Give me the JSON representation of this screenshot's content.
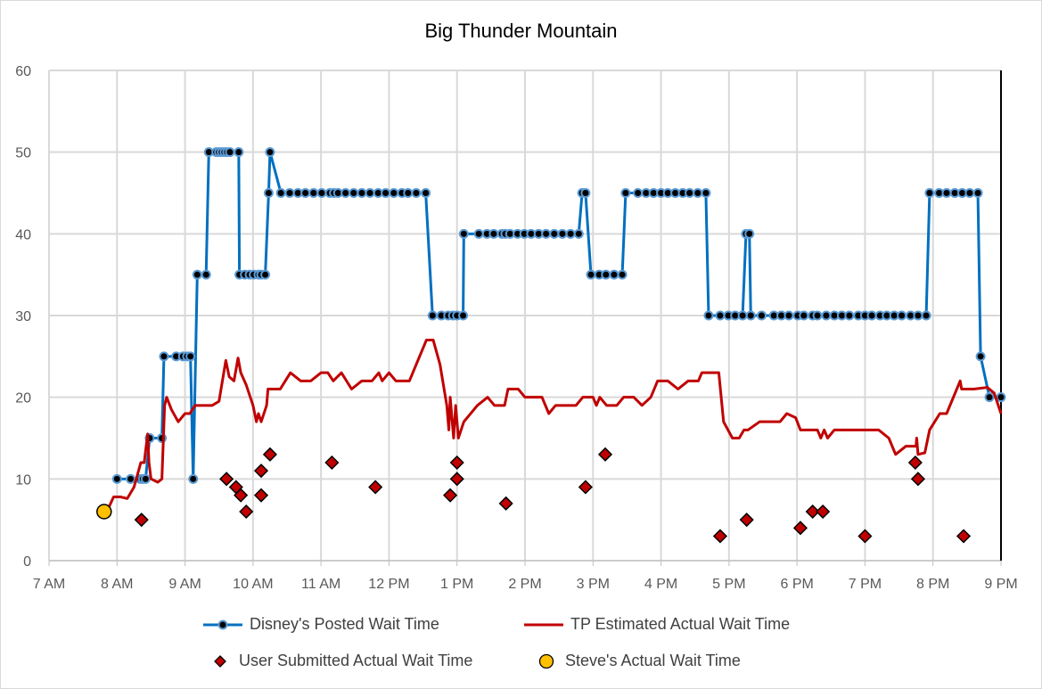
{
  "chart_data": {
    "type": "line",
    "title": "Big Thunder Mountain",
    "xlabel": "",
    "ylabel": "",
    "xlim": [
      7,
      21
    ],
    "ylim": [
      0,
      60
    ],
    "grid": true,
    "legend_placement": "bottom",
    "x_ticks": [
      7,
      8,
      9,
      10,
      11,
      12,
      13,
      14,
      15,
      16,
      17,
      18,
      19,
      20,
      21
    ],
    "x_tick_labels": [
      "7 AM",
      "8 AM",
      "9 AM",
      "10 AM",
      "11 AM",
      "12 PM",
      "1 PM",
      "2 PM",
      "3 PM",
      "4 PM",
      "5 PM",
      "6 PM",
      "7 PM",
      "8 PM",
      "9 PM"
    ],
    "y_ticks": [
      0,
      10,
      20,
      30,
      40,
      50,
      60
    ],
    "y_tick_labels": [
      "0",
      "10",
      "20",
      "30",
      "40",
      "50",
      "60"
    ],
    "series": [
      {
        "name": "Disney's Posted Wait Time",
        "kind": "line-markers",
        "color": "#0070C0",
        "points": [
          [
            8.0,
            10
          ],
          [
            8.2,
            10
          ],
          [
            8.34,
            10
          ],
          [
            8.38,
            10
          ],
          [
            8.42,
            10
          ],
          [
            8.48,
            15
          ],
          [
            8.66,
            15
          ],
          [
            8.69,
            25
          ],
          [
            8.87,
            25
          ],
          [
            8.97,
            25
          ],
          [
            9.03,
            25
          ],
          [
            9.08,
            25
          ],
          [
            9.12,
            10
          ],
          [
            9.18,
            35
          ],
          [
            9.31,
            35
          ],
          [
            9.35,
            50
          ],
          [
            9.46,
            50
          ],
          [
            9.5,
            50
          ],
          [
            9.54,
            50
          ],
          [
            9.58,
            50
          ],
          [
            9.62,
            50
          ],
          [
            9.66,
            50
          ],
          [
            9.79,
            50
          ],
          [
            9.8,
            35
          ],
          [
            9.88,
            35
          ],
          [
            9.95,
            35
          ],
          [
            10.01,
            35
          ],
          [
            10.08,
            35
          ],
          [
            10.12,
            35
          ],
          [
            10.18,
            35
          ],
          [
            10.23,
            45
          ],
          [
            10.25,
            50
          ],
          [
            10.41,
            45
          ],
          [
            10.54,
            45
          ],
          [
            10.66,
            45
          ],
          [
            10.77,
            45
          ],
          [
            10.89,
            45
          ],
          [
            11.01,
            45
          ],
          [
            11.13,
            45
          ],
          [
            11.19,
            45
          ],
          [
            11.25,
            45
          ],
          [
            11.36,
            45
          ],
          [
            11.48,
            45
          ],
          [
            11.6,
            45
          ],
          [
            11.72,
            45
          ],
          [
            11.84,
            45
          ],
          [
            11.95,
            45
          ],
          [
            12.07,
            45
          ],
          [
            12.19,
            45
          ],
          [
            12.28,
            45
          ],
          [
            12.4,
            45
          ],
          [
            12.54,
            45
          ],
          [
            12.64,
            30
          ],
          [
            12.77,
            30
          ],
          [
            12.87,
            30
          ],
          [
            12.94,
            30
          ],
          [
            13.0,
            30
          ],
          [
            13.09,
            30
          ],
          [
            13.1,
            40
          ],
          [
            13.32,
            40
          ],
          [
            13.44,
            40
          ],
          [
            13.54,
            40
          ],
          [
            13.66,
            40
          ],
          [
            13.71,
            40
          ],
          [
            13.78,
            40
          ],
          [
            13.89,
            40
          ],
          [
            13.99,
            40
          ],
          [
            14.09,
            40
          ],
          [
            14.2,
            40
          ],
          [
            14.31,
            40
          ],
          [
            14.43,
            40
          ],
          [
            14.55,
            40
          ],
          [
            14.67,
            40
          ],
          [
            14.79,
            40
          ],
          [
            14.84,
            45
          ],
          [
            14.89,
            45
          ],
          [
            14.97,
            35
          ],
          [
            15.09,
            35
          ],
          [
            15.19,
            35
          ],
          [
            15.31,
            35
          ],
          [
            15.43,
            35
          ],
          [
            15.48,
            45
          ],
          [
            15.66,
            45
          ],
          [
            15.78,
            45
          ],
          [
            15.89,
            45
          ],
          [
            16.0,
            45
          ],
          [
            16.1,
            45
          ],
          [
            16.21,
            45
          ],
          [
            16.32,
            45
          ],
          [
            16.42,
            45
          ],
          [
            16.54,
            45
          ],
          [
            16.66,
            45
          ],
          [
            16.7,
            30
          ],
          [
            16.87,
            30
          ],
          [
            16.99,
            30
          ],
          [
            17.09,
            30
          ],
          [
            17.2,
            30
          ],
          [
            17.25,
            40
          ],
          [
            17.3,
            40
          ],
          [
            17.32,
            30
          ],
          [
            17.48,
            30
          ],
          [
            17.66,
            30
          ],
          [
            17.77,
            30
          ],
          [
            17.88,
            30
          ],
          [
            18.01,
            30
          ],
          [
            18.1,
            30
          ],
          [
            18.23,
            30
          ],
          [
            18.3,
            30
          ],
          [
            18.43,
            30
          ],
          [
            18.55,
            30
          ],
          [
            18.66,
            30
          ],
          [
            18.77,
            30
          ],
          [
            18.9,
            30
          ],
          [
            19.0,
            30
          ],
          [
            19.1,
            30
          ],
          [
            19.22,
            30
          ],
          [
            19.32,
            30
          ],
          [
            19.43,
            30
          ],
          [
            19.54,
            30
          ],
          [
            19.67,
            30
          ],
          [
            19.78,
            30
          ],
          [
            19.9,
            30
          ],
          [
            19.95,
            45
          ],
          [
            20.09,
            45
          ],
          [
            20.2,
            45
          ],
          [
            20.32,
            45
          ],
          [
            20.43,
            45
          ],
          [
            20.54,
            45
          ],
          [
            20.66,
            45
          ],
          [
            20.7,
            25
          ],
          [
            20.83,
            20
          ],
          [
            21.0,
            20
          ]
        ]
      },
      {
        "name": "TP Estimated Actual Wait Time",
        "kind": "line",
        "color": "#C00000",
        "points": [
          [
            7.85,
            6
          ],
          [
            7.95,
            7.8
          ],
          [
            8.05,
            7.8
          ],
          [
            8.15,
            7.6
          ],
          [
            8.25,
            9
          ],
          [
            8.35,
            12
          ],
          [
            8.4,
            12
          ],
          [
            8.45,
            15.5
          ],
          [
            8.47,
            12
          ],
          [
            8.5,
            10
          ],
          [
            8.6,
            9.6
          ],
          [
            8.66,
            10
          ],
          [
            8.7,
            19
          ],
          [
            8.73,
            20
          ],
          [
            8.8,
            18.5
          ],
          [
            8.9,
            17
          ],
          [
            9.0,
            18
          ],
          [
            9.07,
            18
          ],
          [
            9.15,
            19
          ],
          [
            9.4,
            19
          ],
          [
            9.5,
            19.5
          ],
          [
            9.6,
            24.5
          ],
          [
            9.65,
            22.5
          ],
          [
            9.72,
            22
          ],
          [
            9.78,
            24.8
          ],
          [
            9.82,
            23
          ],
          [
            9.9,
            21.5
          ],
          [
            10.0,
            19
          ],
          [
            10.05,
            17
          ],
          [
            10.08,
            18
          ],
          [
            10.12,
            17
          ],
          [
            10.2,
            19
          ],
          [
            10.22,
            21
          ],
          [
            10.4,
            21
          ],
          [
            10.55,
            23
          ],
          [
            10.7,
            22
          ],
          [
            10.85,
            22
          ],
          [
            11.0,
            23
          ],
          [
            11.1,
            23
          ],
          [
            11.18,
            22
          ],
          [
            11.3,
            23
          ],
          [
            11.45,
            21
          ],
          [
            11.6,
            22
          ],
          [
            11.75,
            22
          ],
          [
            11.85,
            23
          ],
          [
            11.9,
            22
          ],
          [
            12.0,
            23
          ],
          [
            12.1,
            22
          ],
          [
            12.3,
            22
          ],
          [
            12.45,
            25
          ],
          [
            12.55,
            27
          ],
          [
            12.65,
            27
          ],
          [
            12.75,
            24
          ],
          [
            12.85,
            19
          ],
          [
            12.88,
            16
          ],
          [
            12.9,
            20
          ],
          [
            12.95,
            15
          ],
          [
            12.98,
            19
          ],
          [
            13.02,
            15
          ],
          [
            13.1,
            17
          ],
          [
            13.3,
            19
          ],
          [
            13.45,
            20
          ],
          [
            13.55,
            19
          ],
          [
            13.7,
            19
          ],
          [
            13.75,
            21
          ],
          [
            13.9,
            21
          ],
          [
            14.0,
            20
          ],
          [
            14.25,
            20
          ],
          [
            14.35,
            18
          ],
          [
            14.45,
            19
          ],
          [
            14.75,
            19
          ],
          [
            14.85,
            20
          ],
          [
            15.0,
            20
          ],
          [
            15.05,
            19
          ],
          [
            15.1,
            20
          ],
          [
            15.2,
            19
          ],
          [
            15.35,
            19
          ],
          [
            15.45,
            20
          ],
          [
            15.6,
            20
          ],
          [
            15.72,
            19
          ],
          [
            15.85,
            20
          ],
          [
            15.95,
            22
          ],
          [
            16.1,
            22
          ],
          [
            16.25,
            21
          ],
          [
            16.4,
            22
          ],
          [
            16.55,
            22
          ],
          [
            16.6,
            23
          ],
          [
            16.85,
            23
          ],
          [
            16.92,
            17
          ],
          [
            17.05,
            15
          ],
          [
            17.15,
            15
          ],
          [
            17.22,
            16
          ],
          [
            17.28,
            16
          ],
          [
            17.45,
            17
          ],
          [
            17.65,
            17
          ],
          [
            17.75,
            17
          ],
          [
            17.85,
            18
          ],
          [
            17.98,
            17.5
          ],
          [
            18.05,
            16
          ],
          [
            18.3,
            16
          ],
          [
            18.35,
            15
          ],
          [
            18.4,
            16
          ],
          [
            18.45,
            15
          ],
          [
            18.55,
            16
          ],
          [
            19.2,
            16
          ],
          [
            19.35,
            15
          ],
          [
            19.45,
            13
          ],
          [
            19.6,
            14
          ],
          [
            19.75,
            14
          ],
          [
            19.76,
            15
          ],
          [
            19.78,
            13
          ],
          [
            19.88,
            13.2
          ],
          [
            19.95,
            16
          ],
          [
            20.1,
            18
          ],
          [
            20.2,
            18
          ],
          [
            20.4,
            22
          ],
          [
            20.42,
            21
          ],
          [
            20.6,
            21
          ],
          [
            20.8,
            21.2
          ],
          [
            20.9,
            20.5
          ],
          [
            21.0,
            18
          ]
        ]
      },
      {
        "name": "User Submitted Actual Wait Time",
        "kind": "scatter-diamond",
        "color": "#C00000",
        "points": [
          [
            8.36,
            5
          ],
          [
            9.61,
            10
          ],
          [
            9.75,
            9
          ],
          [
            9.82,
            8
          ],
          [
            9.9,
            6
          ],
          [
            10.12,
            11
          ],
          [
            10.12,
            8
          ],
          [
            10.25,
            13
          ],
          [
            11.16,
            12
          ],
          [
            11.8,
            9
          ],
          [
            12.9,
            8
          ],
          [
            13.0,
            10
          ],
          [
            13.0,
            12
          ],
          [
            13.72,
            7
          ],
          [
            14.89,
            9
          ],
          [
            15.18,
            13
          ],
          [
            16.87,
            3
          ],
          [
            17.26,
            5
          ],
          [
            18.05,
            4
          ],
          [
            18.23,
            6
          ],
          [
            18.38,
            6
          ],
          [
            19.0,
            3
          ],
          [
            19.74,
            12
          ],
          [
            19.78,
            10
          ],
          [
            20.45,
            3
          ]
        ]
      },
      {
        "name": "Steve's Actual Wait Time",
        "kind": "scatter-circle",
        "color": "#FFC000",
        "points": [
          [
            7.81,
            6
          ]
        ]
      }
    ]
  }
}
